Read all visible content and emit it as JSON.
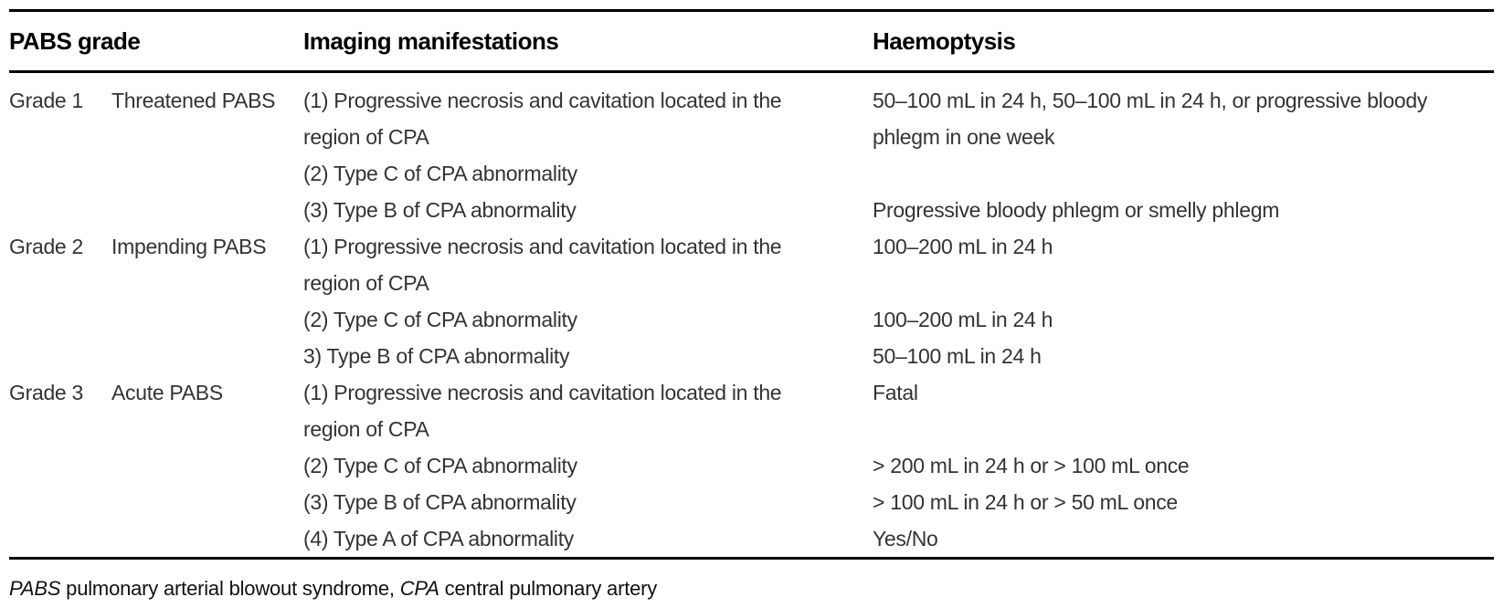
{
  "table": {
    "columns": {
      "grade": "PABS grade",
      "imaging": "Imaging manifestations",
      "haemoptysis": "Haemoptysis"
    },
    "display_rows": [
      {
        "grade": "Grade 1",
        "name": "Threatened PABS",
        "imaging": "(1) Progressive necrosis and cavitation located in the",
        "haemoptysis": "50–100 mL in 24 h, 50–100 mL in 24 h, or progressive bloody"
      },
      {
        "grade": "",
        "name": "",
        "imaging": "region of CPA",
        "haemoptysis": "phlegm in one week"
      },
      {
        "grade": "",
        "name": "",
        "imaging": "(2) Type C of CPA abnormality",
        "haemoptysis": ""
      },
      {
        "grade": "",
        "name": "",
        "imaging": "(3) Type B of CPA abnormality",
        "haemoptysis": "Progressive bloody phlegm or smelly phlegm"
      },
      {
        "grade": "Grade 2",
        "name": "Impending PABS",
        "imaging": "(1) Progressive necrosis and cavitation located in the",
        "haemoptysis": "100–200 mL in 24 h"
      },
      {
        "grade": "",
        "name": "",
        "imaging": "region of CPA",
        "haemoptysis": ""
      },
      {
        "grade": "",
        "name": "",
        "imaging": "(2) Type C of CPA abnormality",
        "haemoptysis": "100–200 mL in 24 h"
      },
      {
        "grade": "",
        "name": "",
        "imaging": "3) Type B of CPA abnormality",
        "haemoptysis": "50–100 mL in 24 h"
      },
      {
        "grade": "Grade 3",
        "name": "Acute PABS",
        "imaging": "(1) Progressive necrosis and cavitation located in the",
        "haemoptysis": "Fatal"
      },
      {
        "grade": "",
        "name": "",
        "imaging": "region of CPA",
        "haemoptysis": ""
      },
      {
        "grade": "",
        "name": "",
        "imaging": "(2) Type C of CPA abnormality",
        "haemoptysis": "> 200 mL in 24 h or > 100 mL once"
      },
      {
        "grade": "",
        "name": "",
        "imaging": "(3) Type B of CPA abnormality",
        "haemoptysis": "> 100 mL in 24 h or > 50 mL once"
      },
      {
        "grade": "",
        "name": "",
        "imaging": "(4) Type A of CPA abnormality",
        "haemoptysis": "Yes/No"
      }
    ],
    "footnote": {
      "parts": [
        {
          "text": "PABS",
          "italic": true
        },
        {
          "text": " pulmonary arterial blowout syndrome, ",
          "italic": false
        },
        {
          "text": "CPA",
          "italic": true
        },
        {
          "text": " central pulmonary artery",
          "italic": false
        }
      ]
    }
  },
  "colors": {
    "background": "#ffffff",
    "rule": "#000000",
    "heading_text": "#000000",
    "body_text": "#333333",
    "footnote_text": "#111111"
  }
}
